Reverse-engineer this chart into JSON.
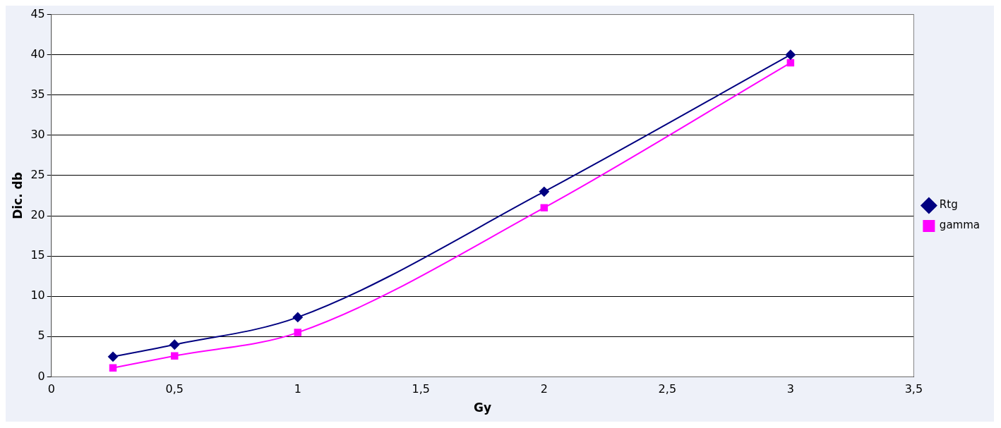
{
  "chart_data": {
    "type": "line",
    "xlabel": "Gy",
    "ylabel": "Dic. db",
    "xlim": [
      0,
      3.5
    ],
    "xticks": [
      0,
      {
        "value": 0.5,
        "label": "0,5"
      },
      1,
      {
        "value": 1.5,
        "label": "1,5"
      },
      2,
      {
        "value": 2.5,
        "label": "2,5"
      },
      3,
      {
        "value": 3.5,
        "label": "3,5"
      }
    ],
    "ylim": [
      0,
      45
    ],
    "yticks": [
      0,
      5,
      10,
      15,
      20,
      25,
      30,
      35,
      40,
      45
    ],
    "grid": "y",
    "legend": "right",
    "line_style": "solid",
    "series": [
      {
        "name": "Rtg",
        "color": "#000080",
        "marker": "diamond",
        "x": [
          0.25,
          0.5,
          1,
          2,
          3
        ],
        "values": [
          2.5,
          4,
          7.4,
          23,
          40
        ]
      },
      {
        "name": "gamma",
        "color": "#ff00ff",
        "marker": "square",
        "x": [
          0.25,
          0.5,
          1,
          2,
          3
        ],
        "values": [
          1.1,
          2.6,
          5.5,
          21,
          39
        ]
      }
    ]
  }
}
